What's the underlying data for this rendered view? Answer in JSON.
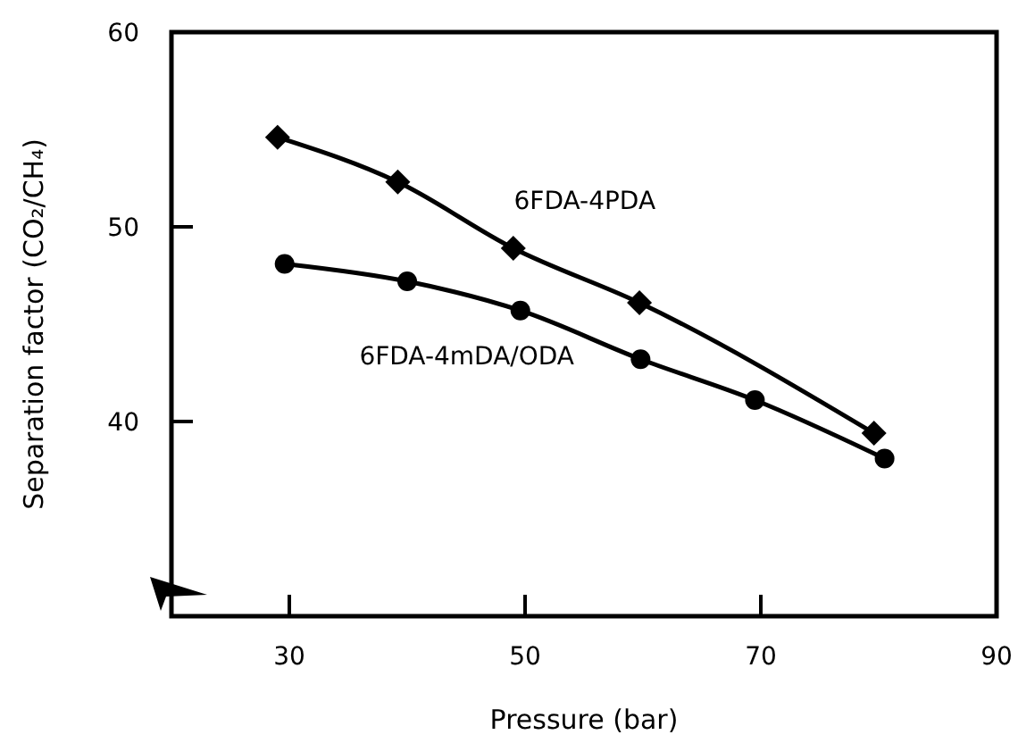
{
  "chart_data": {
    "type": "line",
    "xlabel": "Pressure (bar)",
    "ylabel": "Separation factor (CO₂/CH₄)",
    "xlim": [
      20,
      90
    ],
    "xticks": [
      30,
      50,
      70,
      90
    ],
    "ylim": [
      30,
      60
    ],
    "yticks": [
      40,
      50,
      60
    ],
    "grid": false,
    "line_style": "solid",
    "series": [
      {
        "name": "6FDA-4PDA",
        "color": "#000000",
        "marker": "diamond",
        "x": [
          29,
          39.2,
          49,
          59.7,
          79.6
        ],
        "values": [
          54.6,
          52.3,
          48.9,
          46.1,
          39.4
        ]
      },
      {
        "name": "6FDA-4mDA/ODA",
        "color": "#000000",
        "marker": "circle",
        "x": [
          29.6,
          40,
          49.6,
          59.8,
          69.5,
          80.5
        ],
        "values": [
          48.1,
          47.2,
          45.7,
          43.2,
          41.1,
          38.1
        ]
      }
    ]
  }
}
